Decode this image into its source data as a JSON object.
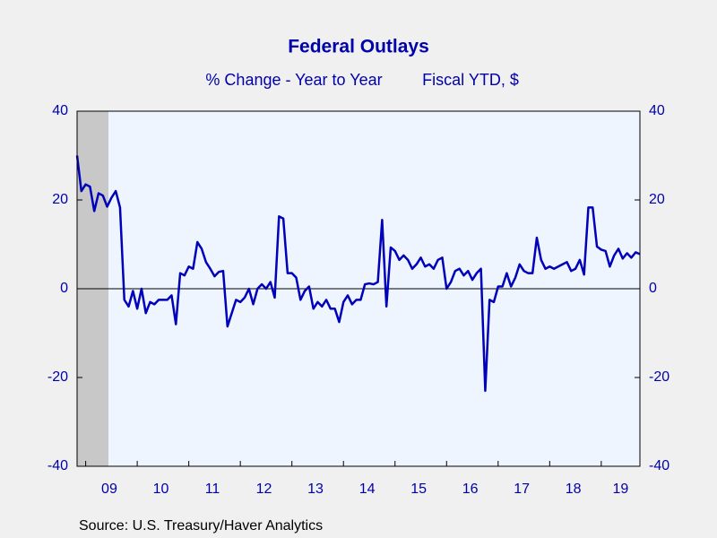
{
  "chart_data": {
    "type": "line",
    "title": "Federal Outlays",
    "subtitle": [
      "% Change - Year to Year",
      "Fiscal YTD, $"
    ],
    "source": "Source:  U.S. Treasury/Haver Analytics",
    "categories": [
      null,
      null,
      null,
      null,
      null,
      null,
      null,
      "09",
      null,
      null,
      null,
      null,
      null,
      null,
      null,
      null,
      null,
      null,
      null,
      "10",
      null,
      null,
      null,
      null,
      null,
      null,
      null,
      null,
      null,
      null,
      null,
      "11",
      null,
      null,
      null,
      null,
      null,
      null,
      null,
      null,
      null,
      null,
      null,
      "12",
      null,
      null,
      null,
      null,
      null,
      null,
      null,
      null,
      null,
      null,
      null,
      "13",
      null,
      null,
      null,
      null,
      null,
      null,
      null,
      null,
      null,
      null,
      null,
      "14",
      null,
      null,
      null,
      null,
      null,
      null,
      null,
      null,
      null,
      null,
      null,
      "15",
      null,
      null,
      null,
      null,
      null,
      null,
      null,
      null,
      null,
      null,
      null,
      "16",
      null,
      null,
      null,
      null,
      null,
      null,
      null,
      null,
      null,
      null,
      null,
      "17",
      null,
      null,
      null,
      null,
      null,
      null,
      null,
      null,
      null,
      null,
      null,
      "18",
      null,
      null,
      null,
      null,
      null,
      null,
      null,
      null,
      null,
      null,
      "19",
      null,
      null,
      null,
      null,
      null
    ],
    "series": [
      {
        "name": "Federal Outlays",
        "color": "#0000bb",
        "values": [
          30,
          22,
          23.5,
          23,
          17.5,
          21.5,
          21,
          18.5,
          20.5,
          22,
          18.3,
          -2.5,
          -4,
          -0.5,
          -4.5,
          0,
          -5.5,
          -3,
          -3.5,
          -2.5,
          -2.5,
          -2.5,
          -1.5,
          -8,
          3.5,
          3,
          5,
          4.5,
          10.5,
          9,
          6,
          4.5,
          2.8,
          3.8,
          4,
          -8.5,
          -5.5,
          -2.5,
          -3,
          -2,
          0,
          -3.5,
          0,
          1,
          0,
          1.5,
          -2,
          16.3,
          15.8,
          3.5,
          3.5,
          2.5,
          -2.5,
          -0.5,
          0.5,
          -4.5,
          -3,
          -4,
          -2.5,
          -4.5,
          -4.5,
          -7.5,
          -3,
          -1.5,
          -3.5,
          -2.5,
          -2.5,
          1,
          1.2,
          1,
          1.5,
          15.5,
          -4,
          9.3,
          8.5,
          6.5,
          7.5,
          6.5,
          4.5,
          5.5,
          7,
          5,
          5.5,
          4.5,
          6.5,
          7,
          0,
          1.5,
          4,
          4.5,
          3,
          4,
          2,
          3.5,
          4.5,
          -23,
          -2.5,
          -3,
          0.5,
          0.5,
          3.5,
          0.5,
          2.5,
          5.5,
          4,
          3.5,
          3.5,
          11.5,
          6.5,
          4.5,
          5,
          4.5,
          5,
          5.5,
          6,
          4,
          4.5,
          6.5,
          3.2,
          18.3,
          18.3,
          9.5,
          8.8,
          8.5,
          5,
          7.5,
          9,
          6.8,
          8,
          7,
          8.2,
          7.8
        ]
      }
    ],
    "shaded_span": [
      0,
      7.3
    ],
    "ylim": [
      -40,
      40
    ],
    "yticks": [
      -40,
      -20,
      0,
      20,
      40
    ],
    "y2lim": [
      -40,
      40
    ],
    "y2ticks": [
      -40,
      -20,
      0,
      20,
      40
    ],
    "grid": false
  }
}
